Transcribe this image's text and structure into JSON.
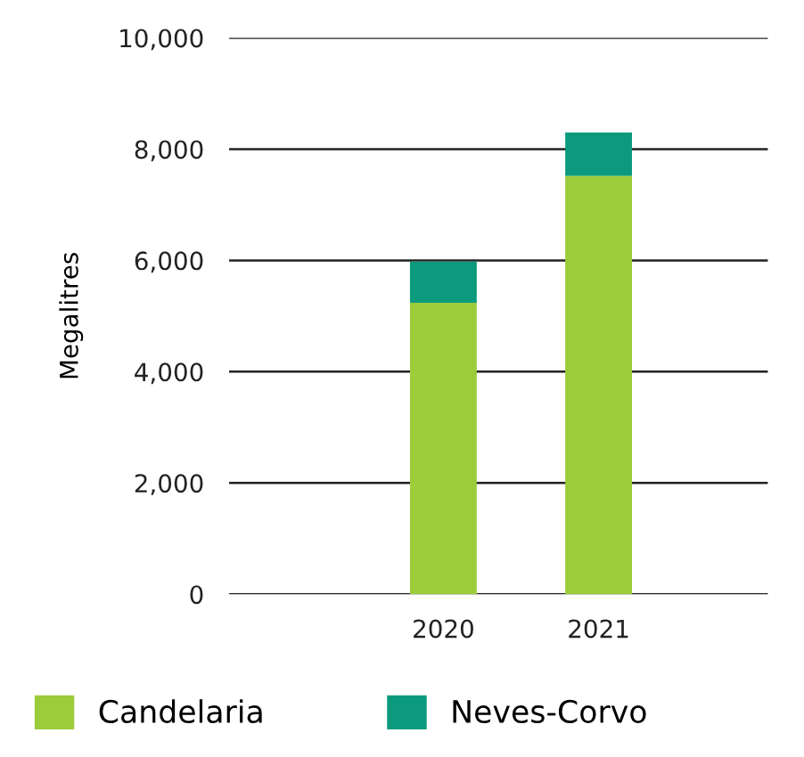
{
  "chart_data": {
    "type": "bar",
    "stacked": true,
    "ylabel": "Megalitres",
    "categories": [
      "2020",
      "2021"
    ],
    "series": [
      {
        "name": "Candelaria",
        "color": "#9ccb3b",
        "values": [
          5240,
          7520
        ]
      },
      {
        "name": "Neves-Corvo",
        "color": "#0b9a7d",
        "values": [
          740,
          780
        ]
      }
    ],
    "ylim": [
      0,
      10000
    ],
    "yticks": [
      {
        "value": 0,
        "label": "0"
      },
      {
        "value": 2000,
        "label": "2,000"
      },
      {
        "value": 4000,
        "label": "4,000"
      },
      {
        "value": 6000,
        "label": "6,000"
      },
      {
        "value": 8000,
        "label": "8,000"
      },
      {
        "value": 10000,
        "label": "10,000"
      }
    ],
    "grid": "y",
    "legend": "bottom"
  }
}
